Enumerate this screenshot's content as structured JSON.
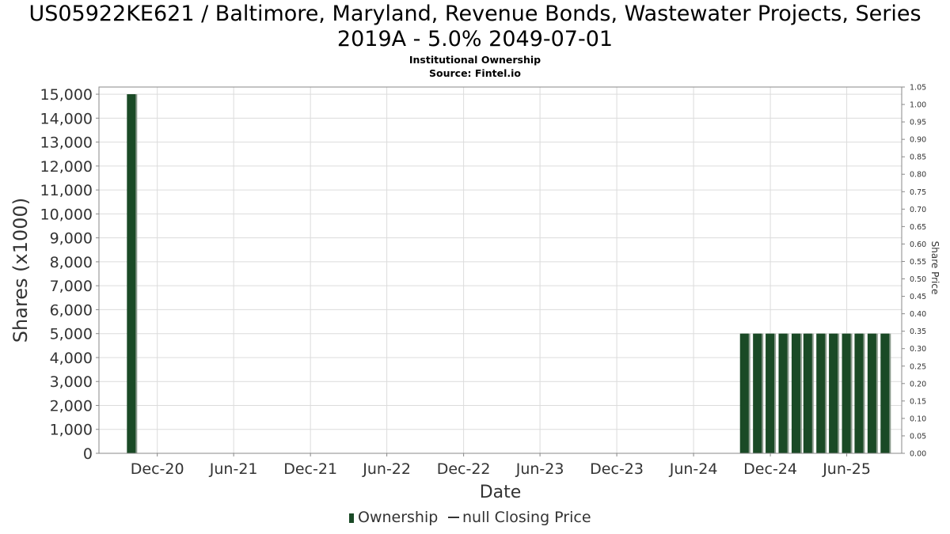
{
  "chart_data": {
    "type": "bar",
    "title": "US05922KE621 / Baltimore, Maryland, Revenue Bonds, Wastewater Projects, Series 2019A - 5.0% 2049-07-01",
    "title_lines": [
      "US05922KE621 / Baltimore, Maryland, Revenue Bonds, Wastewater Projects, Series",
      "2019A - 5.0% 2049-07-01"
    ],
    "subtitle": "Institutional Ownership",
    "source": "Source: Fintel.io",
    "xlabel": "Date",
    "ylabel": "Shares (x1000)",
    "y2label": "Share Price",
    "ylim": [
      0,
      15300
    ],
    "y2lim": [
      0,
      1.05
    ],
    "grid": true,
    "legend_position": "bottom",
    "x_range": [
      "2020-07-15",
      "2025-10-10"
    ],
    "x_ticks": [
      {
        "label": "Dec-20",
        "date": "2020-12-01"
      },
      {
        "label": "Jun-21",
        "date": "2021-06-01"
      },
      {
        "label": "Dec-21",
        "date": "2021-12-01"
      },
      {
        "label": "Jun-22",
        "date": "2022-06-01"
      },
      {
        "label": "Dec-22",
        "date": "2022-12-01"
      },
      {
        "label": "Jun-23",
        "date": "2023-06-01"
      },
      {
        "label": "Dec-23",
        "date": "2023-12-01"
      },
      {
        "label": "Jun-24",
        "date": "2024-06-01"
      },
      {
        "label": "Dec-24",
        "date": "2024-12-01"
      },
      {
        "label": "Jun-25",
        "date": "2025-06-01"
      }
    ],
    "y_ticks": [
      0,
      1000,
      2000,
      3000,
      4000,
      5000,
      6000,
      7000,
      8000,
      9000,
      10000,
      11000,
      12000,
      13000,
      14000,
      15000
    ],
    "y_tick_labels": [
      "0",
      "1,000",
      "2,000",
      "3,000",
      "4,000",
      "5,000",
      "6,000",
      "7,000",
      "8,000",
      "9,000",
      "10,000",
      "11,000",
      "12,000",
      "13,000",
      "14,000",
      "15,000"
    ],
    "y2_ticks": [
      "0.00",
      "0.05",
      "0.10",
      "0.15",
      "0.20",
      "0.25",
      "0.30",
      "0.35",
      "0.40",
      "0.45",
      "0.50",
      "0.55",
      "0.60",
      "0.65",
      "0.70",
      "0.75",
      "0.80",
      "0.85",
      "0.90",
      "0.95",
      "1.00",
      "1.05"
    ],
    "series": [
      {
        "name": "Ownership",
        "color": "#1a4a26",
        "points": [
          {
            "x": "2020-09-30",
            "y": 15000
          },
          {
            "x": "2024-09-30",
            "y": 5000
          },
          {
            "x": "2024-10-31",
            "y": 5000
          },
          {
            "x": "2024-11-30",
            "y": 5000
          },
          {
            "x": "2024-12-31",
            "y": 5000
          },
          {
            "x": "2025-01-31",
            "y": 5000
          },
          {
            "x": "2025-02-28",
            "y": 5000
          },
          {
            "x": "2025-03-31",
            "y": 5000
          },
          {
            "x": "2025-04-30",
            "y": 5000
          },
          {
            "x": "2025-05-31",
            "y": 5000
          },
          {
            "x": "2025-06-30",
            "y": 5000
          },
          {
            "x": "2025-07-31",
            "y": 5000
          },
          {
            "x": "2025-08-31",
            "y": 5000
          }
        ]
      },
      {
        "name": "null Closing Price",
        "color": "#333333",
        "points": []
      }
    ]
  }
}
